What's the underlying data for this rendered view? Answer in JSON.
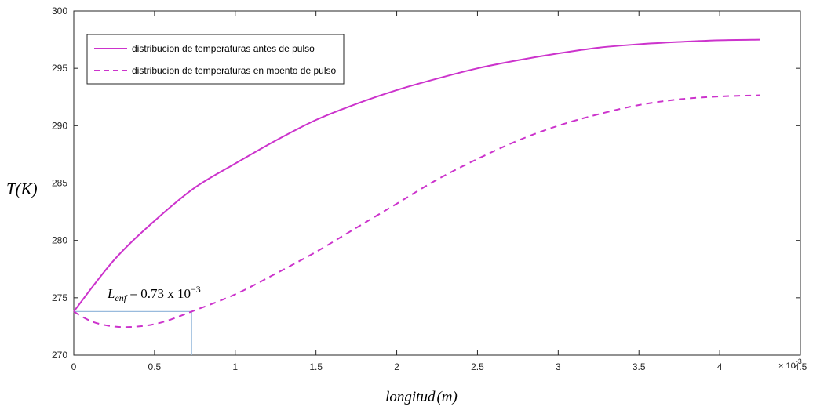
{
  "chart_data": {
    "type": "line",
    "title": "",
    "xlabel": "longitud",
    "xlabel_unit": "(m)",
    "ylabel": "T(K)",
    "xlim": [
      0,
      4.5
    ],
    "ylim": [
      270,
      300
    ],
    "x_ticks": [
      "0",
      "0.5",
      "1",
      "1.5",
      "2",
      "2.5",
      "3",
      "3.5",
      "4",
      "4.5"
    ],
    "y_ticks": [
      "270",
      "275",
      "280",
      "285",
      "290",
      "295",
      "300"
    ],
    "x_exponent_base": "× 10",
    "x_exponent_power": "-3",
    "grid": false,
    "legend_position": "top-left",
    "colors": {
      "series": "#CC33CC",
      "annotation_line": "#99BBDD",
      "axis": "#262626"
    },
    "series": [
      {
        "name": "distribucion de temperaturas antes de pulso",
        "style": "solid",
        "x": [
          0,
          0.25,
          0.5,
          0.75,
          1.0,
          1.25,
          1.5,
          1.75,
          2.0,
          2.25,
          2.5,
          2.75,
          3.0,
          3.25,
          3.5,
          3.75,
          4.0,
          4.25
        ],
        "values": [
          273.8,
          278.3,
          281.7,
          284.6,
          286.7,
          288.7,
          290.5,
          291.9,
          293.1,
          294.1,
          295.0,
          295.7,
          296.3,
          296.8,
          297.1,
          297.3,
          297.45,
          297.5
        ]
      },
      {
        "name": "distribucion de temperaturas en moento de pulso",
        "style": "dashed",
        "x": [
          0,
          0.1,
          0.2,
          0.3,
          0.4,
          0.5,
          0.6,
          0.73,
          1.0,
          1.25,
          1.5,
          1.75,
          2.0,
          2.25,
          2.5,
          2.75,
          3.0,
          3.25,
          3.5,
          3.75,
          4.0,
          4.25
        ],
        "values": [
          273.8,
          273.0,
          272.6,
          272.45,
          272.5,
          272.7,
          273.1,
          273.8,
          275.3,
          277.1,
          279.0,
          281.1,
          283.2,
          285.3,
          287.1,
          288.7,
          290.0,
          291.0,
          291.8,
          292.3,
          292.55,
          292.65
        ]
      }
    ],
    "annotation": {
      "label_prefix": "L",
      "label_subscript": "enf",
      "label_value": " = 0.73 x 10",
      "label_power": "−3",
      "x": 0.73,
      "y": 273.8
    }
  }
}
